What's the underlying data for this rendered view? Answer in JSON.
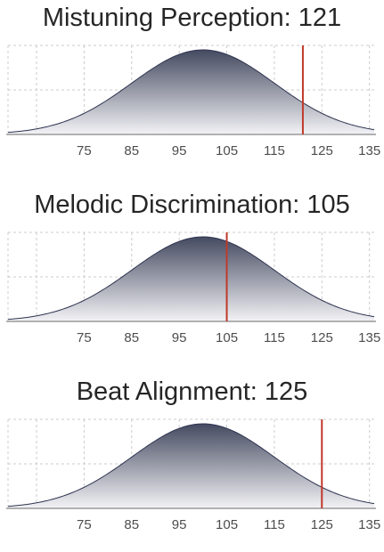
{
  "chart_data": [
    {
      "type": "area",
      "title": "Mistuning Perception",
      "score": 121,
      "distribution": {
        "mean": 100,
        "sd": 15
      },
      "xlabel": "",
      "ylabel": "",
      "xlim": [
        59,
        136
      ],
      "ticks": [
        75,
        85,
        95,
        105,
        115,
        125,
        135
      ],
      "grid": true,
      "marker_color": "#c0392b"
    },
    {
      "type": "area",
      "title": "Melodic Discrimination",
      "score": 105,
      "distribution": {
        "mean": 100,
        "sd": 15
      },
      "xlabel": "",
      "ylabel": "",
      "xlim": [
        59,
        136
      ],
      "ticks": [
        75,
        85,
        95,
        105,
        115,
        125,
        135
      ],
      "grid": true,
      "marker_color": "#c0392b"
    },
    {
      "type": "area",
      "title": "Beat Alignment",
      "score": 125,
      "distribution": {
        "mean": 100,
        "sd": 15
      },
      "xlabel": "",
      "ylabel": "",
      "xlim": [
        59,
        136
      ],
      "ticks": [
        75,
        85,
        95,
        105,
        115,
        125,
        135
      ],
      "grid": true,
      "marker_color": "#c0392b"
    }
  ],
  "colors": {
    "curve_top": "#444a60",
    "curve_bottom": "#f3f3f6",
    "curve_line": "#2f3450",
    "grid": "#cccccc",
    "axis": "#999999",
    "title": "#262626"
  }
}
